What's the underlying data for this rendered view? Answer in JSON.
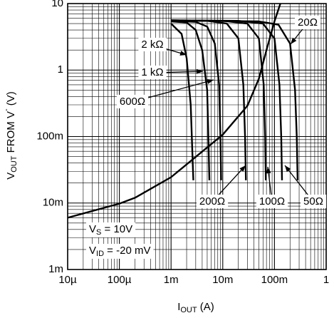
{
  "chart_data": {
    "type": "line",
    "xlabel": {
      "main": "I",
      "sub": "OUT",
      "rest": " (A)"
    },
    "ylabel": {
      "main": "V",
      "sub": "OUT",
      "mid": " FROM V",
      "sup": "-",
      "rest": " (V)"
    },
    "xlog": true,
    "ylog": true,
    "grid": true,
    "color": "#000000",
    "xlim": [
      1e-05,
      1
    ],
    "ylim": [
      0.001,
      10
    ],
    "xticks": [
      {
        "value": 1e-05,
        "label": "10µ"
      },
      {
        "value": 0.0001,
        "label": "100µ"
      },
      {
        "value": 0.001,
        "label": "1m"
      },
      {
        "value": 0.01,
        "label": "10m"
      },
      {
        "value": 0.1,
        "label": "100m"
      },
      1
    ],
    "yticks": [
      {
        "value": 0.001,
        "label": "1m"
      },
      {
        "value": 0.01,
        "label": "10m"
      },
      {
        "value": 0.1,
        "label": "100m"
      },
      1,
      10
    ],
    "series": [
      {
        "name": "2 kΩ",
        "x": [
          0.001,
          0.0016,
          0.002,
          0.0024,
          0.0026,
          0.0027
        ],
        "values": [
          5,
          3.5,
          1.5,
          0.3,
          0.05,
          0.022
        ]
      },
      {
        "name": "1 kΩ",
        "x": [
          0.001,
          0.002,
          0.003,
          0.004,
          0.005,
          0.0053,
          0.0055
        ],
        "values": [
          5.4,
          5.2,
          4,
          2,
          0.5,
          0.08,
          0.022
        ]
      },
      {
        "name": "600Ω",
        "x": [
          0.001,
          0.003,
          0.005,
          0.007,
          0.0085,
          0.009,
          0.0093
        ],
        "values": [
          5.5,
          5.3,
          4.5,
          2.5,
          0.6,
          0.1,
          0.022
        ]
      },
      {
        "name": "200Ω",
        "x": [
          0.001,
          0.005,
          0.012,
          0.02,
          0.025,
          0.027,
          0.028
        ],
        "values": [
          5.6,
          5.5,
          5,
          3,
          0.6,
          0.1,
          0.022
        ]
      },
      {
        "name": "100Ω",
        "x": [
          0.001,
          0.01,
          0.03,
          0.05,
          0.062,
          0.066,
          0.068
        ],
        "values": [
          5.6,
          5.5,
          5,
          3,
          0.6,
          0.1,
          0.022
        ]
      },
      {
        "name": "50Ω",
        "x": [
          0.001,
          0.02,
          0.06,
          0.1,
          0.125,
          0.135,
          0.14
        ],
        "values": [
          5.6,
          5.5,
          5,
          3,
          0.6,
          0.1,
          0.022
        ]
      },
      {
        "name": "20Ω",
        "x": [
          0.003,
          0.05,
          0.12,
          0.2,
          0.25,
          0.27,
          0.28
        ],
        "values": [
          5.5,
          5.4,
          4.8,
          2.5,
          0.5,
          0.1,
          0.022
        ]
      },
      {
        "x": [
          1e-05,
          0.0001,
          0.0002,
          0.001,
          0.01,
          0.03,
          0.05,
          0.07,
          0.1,
          0.13
        ],
        "values": [
          0.006,
          0.0098,
          0.012,
          0.0245,
          0.107,
          0.29,
          0.74,
          2,
          5.4,
          10
        ]
      }
    ],
    "conditions": [
      {
        "main": "V",
        "sub": "S",
        "rest": " = 10V"
      },
      {
        "main": "V",
        "sub": "ID",
        "rest": " = -20 mV"
      }
    ]
  }
}
